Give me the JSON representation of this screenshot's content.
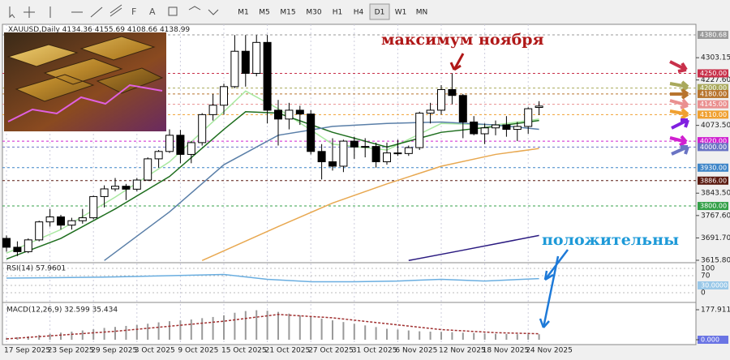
{
  "toolbar": {
    "timeframes": [
      "M1",
      "M5",
      "M15",
      "M30",
      "H1",
      "H4",
      "D1",
      "W1",
      "MN"
    ],
    "active": "D1"
  },
  "header": {
    "symbol": "XAUUSD,Daily"
  },
  "annotations": {
    "high": "максимум ноября",
    "positive": "положительны"
  },
  "price_axis": {
    "ylim": [
      3610.3,
      4416.4
    ],
    "ticks": [
      {
        "value": 4303.15,
        "label": "4303.15"
      },
      {
        "value": 4227.6,
        "label": "4227.60"
      },
      {
        "value": 4073.5,
        "label": "4073.50"
      },
      {
        "value": 3843.5,
        "label": "3843.50"
      },
      {
        "value": 3767.6,
        "label": "3767.60"
      },
      {
        "value": 3691.7,
        "label": "3691.70"
      },
      {
        "value": 3615.8,
        "label": "3615.80"
      }
    ]
  },
  "levels": [
    {
      "value": 4380.68,
      "label": "4380.68",
      "color": "#9a9a9a"
    },
    {
      "value": 4250,
      "label": "4250.00",
      "color": "#c8304a"
    },
    {
      "value": 4200,
      "label": "4200.00",
      "color": "#a9a95c"
    },
    {
      "value": 4180,
      "label": "4180.00",
      "color": "#b8742e"
    },
    {
      "value": 4145,
      "label": "4145.00",
      "color": "#ea9090"
    },
    {
      "value": 4110,
      "label": "4110.00",
      "color": "#f0a030"
    },
    {
      "value": 4020,
      "label": "4020.00",
      "color": "#d020d0"
    },
    {
      "value": 4000,
      "label": "4000.00",
      "color": "#6a74c4"
    },
    {
      "value": 3930,
      "label": "3930.00",
      "color": "#3f86c8"
    },
    {
      "value": 3886,
      "label": "3886.00",
      "color": "#5a1a10"
    },
    {
      "value": 3800,
      "label": "3800.00",
      "color": "#34a048"
    }
  ],
  "candles": [
    [
      3690,
      3700,
      3645,
      3660
    ],
    [
      3660,
      3680,
      3630,
      3645
    ],
    [
      3645,
      3690,
      3640,
      3685
    ],
    [
      3685,
      3750,
      3680,
      3746
    ],
    [
      3746,
      3790,
      3730,
      3763
    ],
    [
      3763,
      3770,
      3720,
      3735
    ],
    [
      3735,
      3760,
      3720,
      3750
    ],
    [
      3750,
      3790,
      3740,
      3760
    ],
    [
      3760,
      3835,
      3755,
      3832
    ],
    [
      3832,
      3870,
      3795,
      3858
    ],
    [
      3858,
      3895,
      3850,
      3867
    ],
    [
      3867,
      3875,
      3820,
      3857
    ],
    [
      3857,
      3895,
      3850,
      3888
    ],
    [
      3888,
      3965,
      3885,
      3960
    ],
    [
      3960,
      3990,
      3930,
      3985
    ],
    [
      3985,
      4060,
      3980,
      4040
    ],
    [
      4040,
      4058,
      3945,
      3975
    ],
    [
      3975,
      4020,
      3945,
      4015
    ],
    [
      4015,
      4115,
      4005,
      4110
    ],
    [
      4110,
      4180,
      4090,
      4142
    ],
    [
      4142,
      4215,
      4110,
      4205
    ],
    [
      4205,
      4380,
      4200,
      4325
    ],
    [
      4325,
      4380,
      4205,
      4250
    ],
    [
      4250,
      4380,
      4240,
      4355
    ],
    [
      4355,
      4380,
      4080,
      4125
    ],
    [
      4125,
      4160,
      4005,
      4095
    ],
    [
      4095,
      4150,
      4060,
      4125
    ],
    [
      4125,
      4140,
      4075,
      4112
    ],
    [
      4112,
      4125,
      3975,
      3985
    ],
    [
      3985,
      4010,
      3890,
      3950
    ],
    [
      3950,
      4030,
      3920,
      3935
    ],
    [
      3935,
      4025,
      3915,
      4020
    ],
    [
      4020,
      4035,
      3960,
      4000
    ],
    [
      4000,
      4030,
      3965,
      4002
    ],
    [
      4002,
      4015,
      3930,
      3950
    ],
    [
      3950,
      4015,
      3940,
      3980
    ],
    [
      3980,
      4025,
      3970,
      3978
    ],
    [
      3978,
      4005,
      3970,
      3998
    ],
    [
      3998,
      4120,
      3990,
      4115
    ],
    [
      4115,
      4150,
      4080,
      4125
    ],
    [
      4125,
      4210,
      4110,
      4195
    ],
    [
      4195,
      4250,
      4145,
      4175
    ],
    [
      4175,
      4180,
      4030,
      4085
    ],
    [
      4085,
      4105,
      4040,
      4045
    ],
    [
      4045,
      4080,
      4010,
      4065
    ],
    [
      4065,
      4090,
      4040,
      4075
    ],
    [
      4075,
      4105,
      4035,
      4060
    ],
    [
      4060,
      4085,
      4020,
      4070
    ],
    [
      4070,
      4135,
      4045,
      4130
    ],
    [
      4134.36,
      4155.69,
      4108.66,
      4138.99
    ]
  ],
  "lines": [
    {
      "color": "#a8e8a0",
      "x": [
        0,
        5,
        10,
        15,
        20,
        22,
        25,
        30,
        35,
        40,
        45,
        49
      ],
      "values": [
        3640,
        3720,
        3830,
        3950,
        4120,
        4190,
        4130,
        4010,
        3990,
        4080,
        4075,
        4095
      ]
    },
    {
      "color": "#1e6e1e",
      "x": [
        0,
        5,
        10,
        15,
        20,
        22,
        25,
        30,
        35,
        40,
        45,
        49
      ],
      "values": [
        3620,
        3690,
        3790,
        3900,
        4060,
        4120,
        4115,
        4050,
        4000,
        4050,
        4070,
        4090
      ]
    },
    {
      "color": "#5a7fa8",
      "x": [
        9,
        15,
        20,
        25,
        30,
        35,
        40,
        45,
        49
      ],
      "values": [
        3615,
        3780,
        3940,
        4040,
        4070,
        4080,
        4085,
        4075,
        4060
      ]
    },
    {
      "color": "#e8a850",
      "x": [
        18,
        25,
        30,
        35,
        40,
        45,
        49
      ],
      "values": [
        3615,
        3730,
        3810,
        3875,
        3935,
        3975,
        3995
      ]
    },
    {
      "color": "#2a1a80",
      "x": [
        37,
        42,
        49
      ],
      "values": [
        3615,
        3650,
        3700
      ]
    }
  ],
  "dates": [
    "17 Sep 2025",
    "23 Sep 2025",
    "29 Sep 2025",
    "3 Oct 2025",
    "9 Oct 2025",
    "15 Oct 2025",
    "21 Oct 2025",
    "27 Oct 2025",
    "31 Oct 2025",
    "6 Nov 2025",
    "12 Nov 2025",
    "18 Nov 2025",
    "24 Nov 2025"
  ],
  "rsi": {
    "label": "RSI(14) 57.9601",
    "ticks": [
      100,
      70,
      {
        "value": 30,
        "label": "30.0000"
      },
      0
    ],
    "color": "#6aaee0",
    "x": [
      0,
      5,
      10,
      15,
      20,
      24,
      28,
      32,
      36,
      40,
      44,
      49
    ],
    "values": [
      60,
      62,
      65,
      70,
      75,
      55,
      45,
      45,
      48,
      55,
      48,
      57.96
    ]
  },
  "macd": {
    "label": "MACD(12,26,9) 32.599 35.434",
    "ticks": [
      177.911,
      {
        "value": 0,
        "label": "0.000"
      }
    ],
    "histogram": [
      10,
      15,
      20,
      28,
      35,
      42,
      48,
      55,
      62,
      70,
      76,
      82,
      88,
      95,
      103,
      110,
      115,
      120,
      128,
      135,
      145,
      160,
      170,
      175,
      172,
      165,
      155,
      145,
      135,
      125,
      115,
      105,
      95,
      85,
      75,
      65,
      60,
      55,
      50,
      48,
      47,
      45,
      42,
      40,
      37,
      35,
      34,
      33,
      33,
      32.599
    ],
    "signal": {
      "x": [
        0,
        10,
        20,
        25,
        30,
        35,
        40,
        45,
        49
      ],
      "values": [
        5,
        50,
        110,
        150,
        130,
        95,
        60,
        42,
        35.434
      ]
    }
  }
}
